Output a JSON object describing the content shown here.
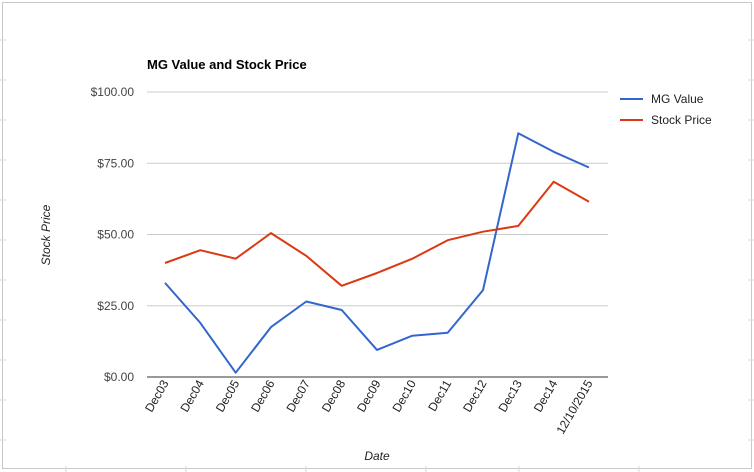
{
  "chart_data": {
    "type": "line",
    "title": "MG Value and Stock Price",
    "xlabel": "Date",
    "ylabel": "Stock Price",
    "categories": [
      "Dec03",
      "Dec04",
      "Dec05",
      "Dec06",
      "Dec07",
      "Dec08",
      "Dec09",
      "Dec10",
      "Dec11",
      "Dec12",
      "Dec13",
      "Dec14",
      "12/10/2015"
    ],
    "series": [
      {
        "name": "MG Value",
        "color": "#3366cc",
        "values": [
          33,
          19,
          1.5,
          17.5,
          26.5,
          23.5,
          9.5,
          14.5,
          15.5,
          30.5,
          85.5,
          79,
          73.5
        ]
      },
      {
        "name": "Stock Price",
        "color": "#dc3912",
        "values": [
          40,
          44.5,
          41.5,
          50.5,
          42.5,
          32,
          36.5,
          41.5,
          48,
          51,
          53,
          68.5,
          61.5
        ]
      }
    ],
    "ylim": [
      0,
      100
    ],
    "yticks": [
      0,
      25,
      50,
      75,
      100
    ],
    "ytick_labels": [
      "$0.00",
      "$25.00",
      "$50.00",
      "$75.00",
      "$100.00"
    ],
    "grid": true,
    "legend": "right"
  }
}
